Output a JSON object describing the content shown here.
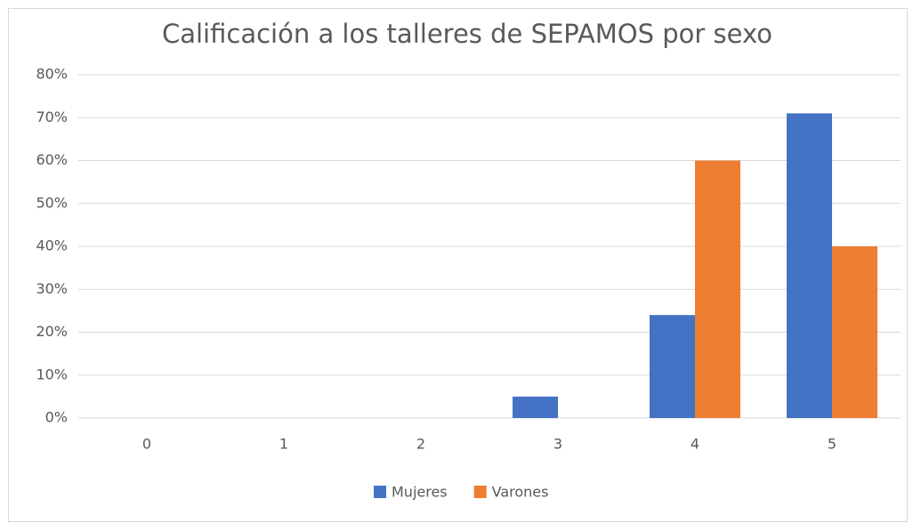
{
  "chart_data": {
    "type": "bar",
    "title": "Calificación a los talleres de SEPAMOS por sexo",
    "categories": [
      "0",
      "1",
      "2",
      "3",
      "4",
      "5"
    ],
    "series": [
      {
        "name": "Mujeres",
        "color": "#4472c4",
        "values": [
          0,
          0,
          0,
          5,
          24,
          71
        ]
      },
      {
        "name": "Varones",
        "color": "#ed7d31",
        "values": [
          0,
          0,
          0,
          0,
          60,
          40
        ]
      }
    ],
    "ylim": [
      0,
      80
    ],
    "yticks": [
      {
        "value": 0,
        "label": "0%"
      },
      {
        "value": 10,
        "label": "10%"
      },
      {
        "value": 20,
        "label": "20%"
      },
      {
        "value": 30,
        "label": "30%"
      },
      {
        "value": 40,
        "label": "40%"
      },
      {
        "value": 50,
        "label": "50%"
      },
      {
        "value": 60,
        "label": "60%"
      },
      {
        "value": 70,
        "label": "70%"
      },
      {
        "value": 80,
        "label": "80%"
      }
    ],
    "grid": true,
    "legend": "bottom"
  }
}
